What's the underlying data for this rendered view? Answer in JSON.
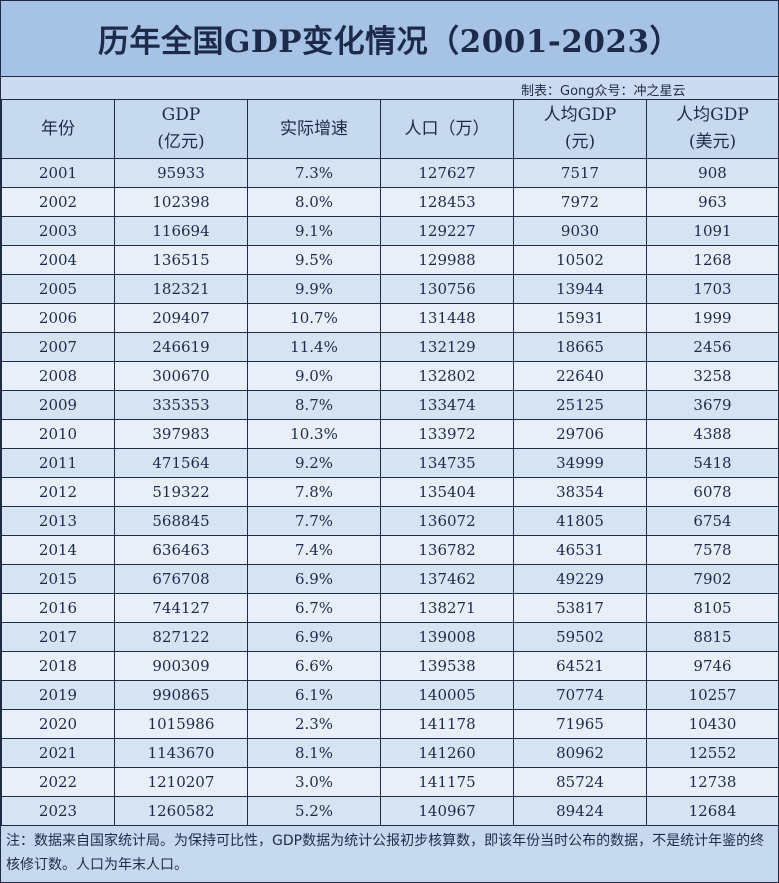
{
  "title": "历年全国GDP变化情况（2001-2023）",
  "credit": "制表：Gong众号：冲之星云",
  "note": "注：数据来自国家统计局。为保持可比性，GDP数据为统计公报初步核算数，即该年份当时公布的数据，不是统计年鉴的终核修订数。人口为年末人口。",
  "colors": {
    "title_bg": "#a6c3e6",
    "header_bg": "#c7d9ef",
    "row_odd": "#d6e3f3",
    "row_even": "#e8eff8",
    "text": "#1e2a4a"
  },
  "chart_data": {
    "type": "table",
    "title": "历年全国GDP变化情况（2001-2023）",
    "columns": [
      [
        "年份"
      ],
      [
        "GDP",
        "(亿元)"
      ],
      [
        "实际增速"
      ],
      [
        "人口（万）"
      ],
      [
        "人均GDP",
        "(元)"
      ],
      [
        "人均GDP",
        "(美元)"
      ]
    ],
    "rows": [
      [
        "2001",
        "95933",
        "7.3%",
        "127627",
        "7517",
        "908"
      ],
      [
        "2002",
        "102398",
        "8.0%",
        "128453",
        "7972",
        "963"
      ],
      [
        "2003",
        "116694",
        "9.1%",
        "129227",
        "9030",
        "1091"
      ],
      [
        "2004",
        "136515",
        "9.5%",
        "129988",
        "10502",
        "1268"
      ],
      [
        "2005",
        "182321",
        "9.9%",
        "130756",
        "13944",
        "1703"
      ],
      [
        "2006",
        "209407",
        "10.7%",
        "131448",
        "15931",
        "1999"
      ],
      [
        "2007",
        "246619",
        "11.4%",
        "132129",
        "18665",
        "2456"
      ],
      [
        "2008",
        "300670",
        "9.0%",
        "132802",
        "22640",
        "3258"
      ],
      [
        "2009",
        "335353",
        "8.7%",
        "133474",
        "25125",
        "3679"
      ],
      [
        "2010",
        "397983",
        "10.3%",
        "133972",
        "29706",
        "4388"
      ],
      [
        "2011",
        "471564",
        "9.2%",
        "134735",
        "34999",
        "5418"
      ],
      [
        "2012",
        "519322",
        "7.8%",
        "135404",
        "38354",
        "6078"
      ],
      [
        "2013",
        "568845",
        "7.7%",
        "136072",
        "41805",
        "6754"
      ],
      [
        "2014",
        "636463",
        "7.4%",
        "136782",
        "46531",
        "7578"
      ],
      [
        "2015",
        "676708",
        "6.9%",
        "137462",
        "49229",
        "7902"
      ],
      [
        "2016",
        "744127",
        "6.7%",
        "138271",
        "53817",
        "8105"
      ],
      [
        "2017",
        "827122",
        "6.9%",
        "139008",
        "59502",
        "8815"
      ],
      [
        "2018",
        "900309",
        "6.6%",
        "139538",
        "64521",
        "9746"
      ],
      [
        "2019",
        "990865",
        "6.1%",
        "140005",
        "70774",
        "10257"
      ],
      [
        "2020",
        "1015986",
        "2.3%",
        "141178",
        "71965",
        "10430"
      ],
      [
        "2021",
        "1143670",
        "8.1%",
        "141260",
        "80962",
        "12552"
      ],
      [
        "2022",
        "1210207",
        "3.0%",
        "141175",
        "85724",
        "12738"
      ],
      [
        "2023",
        "1260582",
        "5.2%",
        "140967",
        "89424",
        "12684"
      ]
    ]
  }
}
